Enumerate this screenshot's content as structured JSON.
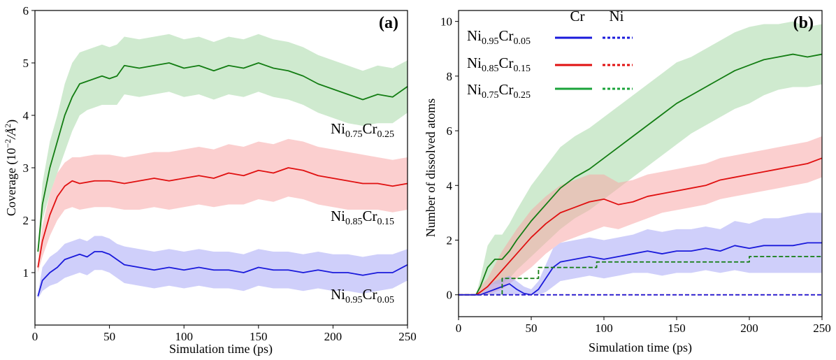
{
  "colors": {
    "blue": "#1a1adb",
    "red": "#e01010",
    "green": "#137d13",
    "blue_band": "#a8a8f5",
    "red_band": "#f7a8a8",
    "green_band": "#a8d8a8"
  },
  "chart_data": [
    {
      "type": "line",
      "panel": "(a)",
      "xlabel": "Simulation time (ps)",
      "ylabel_main": "Coverage (10",
      "ylabel_exp": "−2",
      "ylabel_unit": "/Å",
      "ylabel_unit_exp": "2",
      "ylabel_close": ")",
      "xlim": [
        0,
        250
      ],
      "ylim": [
        0,
        6
      ],
      "xticks": [
        0,
        50,
        100,
        150,
        200,
        250
      ],
      "yticks": [
        1,
        2,
        3,
        4,
        5,
        6
      ],
      "series": [
        {
          "name": "Ni0.75Cr0.25",
          "label_base1": "Ni",
          "label_sub1": "0.75",
          "label_base2": "Cr",
          "label_sub2": "0.25",
          "color": "green",
          "band": "green_band",
          "x": [
            2,
            5,
            10,
            15,
            20,
            25,
            30,
            35,
            40,
            45,
            50,
            55,
            60,
            70,
            80,
            90,
            100,
            110,
            120,
            130,
            140,
            150,
            160,
            170,
            180,
            190,
            200,
            210,
            220,
            230,
            240,
            250
          ],
          "y": [
            1.4,
            2.3,
            3.0,
            3.5,
            4.0,
            4.35,
            4.6,
            4.65,
            4.7,
            4.75,
            4.7,
            4.75,
            4.95,
            4.9,
            4.95,
            5.0,
            4.9,
            4.95,
            4.85,
            4.95,
            4.9,
            5.0,
            4.9,
            4.85,
            4.75,
            4.6,
            4.5,
            4.4,
            4.3,
            4.4,
            4.35,
            4.55
          ],
          "lower": [
            1.3,
            2.0,
            2.5,
            2.9,
            3.3,
            3.7,
            4.0,
            4.1,
            4.15,
            4.2,
            4.2,
            4.2,
            4.4,
            4.35,
            4.4,
            4.45,
            4.35,
            4.4,
            4.3,
            4.4,
            4.35,
            4.45,
            4.35,
            4.3,
            4.2,
            4.05,
            3.95,
            3.85,
            3.8,
            3.85,
            3.85,
            4.05
          ],
          "upper": [
            1.5,
            2.7,
            3.5,
            4.0,
            4.6,
            5.0,
            5.2,
            5.25,
            5.3,
            5.35,
            5.3,
            5.35,
            5.5,
            5.45,
            5.5,
            5.55,
            5.45,
            5.5,
            5.4,
            5.5,
            5.45,
            5.55,
            5.45,
            5.4,
            5.3,
            5.15,
            5.05,
            4.95,
            4.85,
            4.95,
            4.9,
            5.05
          ]
        },
        {
          "name": "Ni0.85Cr0.15",
          "label_base1": "Ni",
          "label_sub1": "0.85",
          "label_base2": "Cr",
          "label_sub2": "0.15",
          "color": "red",
          "band": "red_band",
          "x": [
            2,
            5,
            10,
            15,
            20,
            25,
            30,
            40,
            50,
            60,
            70,
            80,
            90,
            100,
            110,
            120,
            130,
            140,
            150,
            160,
            170,
            180,
            190,
            200,
            210,
            220,
            230,
            240,
            250
          ],
          "y": [
            1.1,
            1.6,
            2.1,
            2.45,
            2.65,
            2.75,
            2.7,
            2.75,
            2.75,
            2.7,
            2.75,
            2.8,
            2.75,
            2.8,
            2.85,
            2.8,
            2.9,
            2.85,
            2.95,
            2.9,
            3.0,
            2.95,
            2.85,
            2.8,
            2.75,
            2.7,
            2.7,
            2.65,
            2.7
          ],
          "lower": [
            1.0,
            1.3,
            1.7,
            2.0,
            2.2,
            2.25,
            2.2,
            2.25,
            2.25,
            2.2,
            2.2,
            2.25,
            2.2,
            2.25,
            2.3,
            2.25,
            2.3,
            2.3,
            2.4,
            2.35,
            2.45,
            2.4,
            2.3,
            2.25,
            2.2,
            2.2,
            2.2,
            2.15,
            2.2
          ],
          "upper": [
            1.2,
            1.9,
            2.5,
            2.9,
            3.1,
            3.2,
            3.2,
            3.25,
            3.25,
            3.2,
            3.25,
            3.3,
            3.3,
            3.35,
            3.4,
            3.35,
            3.45,
            3.4,
            3.5,
            3.45,
            3.55,
            3.5,
            3.4,
            3.35,
            3.3,
            3.25,
            3.2,
            3.15,
            3.2
          ]
        },
        {
          "name": "Ni0.95Cr0.05",
          "label_base1": "Ni",
          "label_sub1": "0.95",
          "label_base2": "Cr",
          "label_sub2": "0.05",
          "color": "blue",
          "band": "blue_band",
          "x": [
            2,
            5,
            10,
            15,
            20,
            25,
            30,
            35,
            40,
            45,
            50,
            55,
            60,
            70,
            80,
            90,
            100,
            110,
            120,
            130,
            140,
            150,
            160,
            170,
            180,
            190,
            200,
            210,
            220,
            230,
            240,
            250
          ],
          "y": [
            0.55,
            0.85,
            1.0,
            1.1,
            1.25,
            1.3,
            1.35,
            1.3,
            1.4,
            1.4,
            1.35,
            1.25,
            1.15,
            1.1,
            1.05,
            1.1,
            1.05,
            1.1,
            1.05,
            1.05,
            1.0,
            1.1,
            1.05,
            1.05,
            1.0,
            1.05,
            1.0,
            1.0,
            0.95,
            1.0,
            1.0,
            1.15
          ],
          "lower": [
            0.5,
            0.65,
            0.75,
            0.8,
            0.9,
            0.95,
            1.0,
            0.95,
            1.05,
            1.05,
            1.0,
            0.9,
            0.8,
            0.75,
            0.7,
            0.75,
            0.7,
            0.75,
            0.7,
            0.7,
            0.65,
            0.75,
            0.7,
            0.7,
            0.65,
            0.7,
            0.65,
            0.65,
            0.6,
            0.65,
            0.7,
            0.85
          ],
          "upper": [
            0.6,
            1.1,
            1.3,
            1.4,
            1.55,
            1.6,
            1.65,
            1.6,
            1.7,
            1.7,
            1.65,
            1.55,
            1.5,
            1.45,
            1.4,
            1.45,
            1.4,
            1.45,
            1.4,
            1.4,
            1.35,
            1.45,
            1.4,
            1.4,
            1.35,
            1.4,
            1.35,
            1.35,
            1.3,
            1.35,
            1.35,
            1.45
          ]
        }
      ]
    },
    {
      "type": "line",
      "panel": "(b)",
      "xlabel": "Simulation time (ps)",
      "ylabel": "Number of dissolved atoms",
      "xlim": [
        0,
        250
      ],
      "ylim": [
        -0.8,
        10.4
      ],
      "xticks": [
        0,
        50,
        100,
        150,
        200,
        250
      ],
      "yticks": [
        0,
        2,
        4,
        6,
        8,
        10
      ],
      "legend": {
        "col_cr": "Cr",
        "col_ni": "Ni",
        "rows": [
          {
            "base1": "Ni",
            "sub1": "0.95",
            "base2": "Cr",
            "sub2": "0.05",
            "color": "blue"
          },
          {
            "base1": "Ni",
            "sub1": "0.85",
            "base2": "Cr",
            "sub2": "0.15",
            "color": "red"
          },
          {
            "base1": "Ni",
            "sub1": "0.75",
            "base2": "Cr",
            "sub2": "0.25",
            "color": "green"
          }
        ]
      },
      "series": [
        {
          "name": "Ni0.75Cr0.25 Cr",
          "color": "green",
          "band": "green_band",
          "style": "solid",
          "x": [
            0,
            12,
            15,
            20,
            25,
            30,
            35,
            40,
            50,
            60,
            70,
            80,
            90,
            100,
            110,
            120,
            130,
            140,
            150,
            160,
            170,
            180,
            190,
            200,
            210,
            220,
            230,
            240,
            250
          ],
          "y": [
            0,
            0,
            0.3,
            1.0,
            1.3,
            1.3,
            1.6,
            2.0,
            2.7,
            3.3,
            3.9,
            4.3,
            4.6,
            5.0,
            5.4,
            5.8,
            6.2,
            6.6,
            7.0,
            7.3,
            7.6,
            7.9,
            8.2,
            8.4,
            8.6,
            8.7,
            8.8,
            8.7,
            8.8
          ],
          "lower": [
            0,
            0,
            0.0,
            0.3,
            0.4,
            0.4,
            0.6,
            0.9,
            1.4,
            1.9,
            2.4,
            2.8,
            3.1,
            3.5,
            3.9,
            4.3,
            4.7,
            5.1,
            5.5,
            5.9,
            6.2,
            6.5,
            6.8,
            7.0,
            7.3,
            7.5,
            7.6,
            7.6,
            7.7
          ],
          "upper": [
            0,
            0,
            0.6,
            1.8,
            2.2,
            2.2,
            2.6,
            3.1,
            4.0,
            4.7,
            5.4,
            5.8,
            6.1,
            6.5,
            6.9,
            7.3,
            7.7,
            8.1,
            8.5,
            8.7,
            9.0,
            9.3,
            9.6,
            9.8,
            9.9,
            9.9,
            10.0,
            9.8,
            9.9
          ]
        },
        {
          "name": "Ni0.85Cr0.15 Cr",
          "color": "red",
          "band": "red_band",
          "style": "solid",
          "x": [
            0,
            12,
            15,
            20,
            25,
            30,
            40,
            50,
            60,
            70,
            80,
            90,
            100,
            110,
            120,
            130,
            140,
            150,
            160,
            170,
            180,
            190,
            200,
            210,
            220,
            230,
            240,
            250
          ],
          "y": [
            0,
            0,
            0.1,
            0.3,
            0.6,
            0.9,
            1.5,
            2.1,
            2.6,
            3.0,
            3.2,
            3.4,
            3.5,
            3.3,
            3.4,
            3.6,
            3.7,
            3.8,
            3.9,
            4.0,
            4.2,
            4.3,
            4.4,
            4.5,
            4.6,
            4.7,
            4.8,
            5.0
          ],
          "lower": [
            0,
            0,
            0,
            0.0,
            0.1,
            0.2,
            0.6,
            1.0,
            1.5,
            1.9,
            2.1,
            2.3,
            2.5,
            2.4,
            2.6,
            2.8,
            3.0,
            3.1,
            3.2,
            3.3,
            3.5,
            3.6,
            3.7,
            3.8,
            3.9,
            4.0,
            4.1,
            4.3
          ],
          "upper": [
            0,
            0,
            0.3,
            0.6,
            1.1,
            1.6,
            2.4,
            3.1,
            3.6,
            4.0,
            4.2,
            4.4,
            4.4,
            4.1,
            4.2,
            4.4,
            4.5,
            4.6,
            4.7,
            4.8,
            5.0,
            5.1,
            5.2,
            5.3,
            5.4,
            5.5,
            5.6,
            5.8
          ]
        },
        {
          "name": "Ni0.95Cr0.05 Cr",
          "color": "blue",
          "band": "blue_band",
          "style": "solid",
          "x": [
            0,
            15,
            20,
            25,
            30,
            35,
            40,
            45,
            50,
            55,
            60,
            65,
            70,
            80,
            90,
            100,
            110,
            120,
            130,
            140,
            150,
            160,
            170,
            180,
            190,
            200,
            210,
            220,
            230,
            240,
            250
          ],
          "y": [
            0,
            0,
            0.1,
            0.2,
            0.3,
            0.4,
            0.2,
            0.05,
            0,
            0.2,
            0.6,
            1.0,
            1.2,
            1.3,
            1.4,
            1.3,
            1.4,
            1.5,
            1.6,
            1.5,
            1.6,
            1.6,
            1.7,
            1.6,
            1.8,
            1.7,
            1.8,
            1.8,
            1.8,
            1.9,
            1.9
          ],
          "lower": [
            0,
            0,
            0,
            0,
            0,
            0,
            0,
            0,
            0,
            0,
            0.1,
            0.3,
            0.5,
            0.6,
            0.7,
            0.6,
            0.7,
            0.8,
            0.8,
            0.7,
            0.8,
            0.8,
            0.9,
            0.8,
            0.9,
            0.8,
            0.8,
            0.8,
            0.8,
            0.8,
            0.8
          ],
          "upper": [
            0,
            0,
            0.3,
            0.5,
            0.6,
            0.7,
            0.5,
            0.3,
            0.2,
            0.5,
            1.1,
            1.7,
            1.9,
            2.0,
            2.1,
            2.0,
            2.1,
            2.2,
            2.4,
            2.3,
            2.4,
            2.4,
            2.5,
            2.4,
            2.7,
            2.6,
            2.8,
            2.8,
            2.9,
            3.0,
            3.0
          ]
        },
        {
          "name": "Ni0.75Cr0.25 Ni",
          "color": "green",
          "style": "dashed",
          "x": [
            0,
            30,
            30,
            55,
            55,
            95,
            95,
            125,
            125,
            200,
            200,
            250
          ],
          "y": [
            0,
            0,
            0.6,
            0.6,
            1.0,
            1.0,
            1.2,
            1.2,
            1.2,
            1.2,
            1.4,
            1.4
          ]
        },
        {
          "name": "Ni0.85Cr0.15 Ni",
          "color": "red",
          "style": "dashed",
          "x": [
            0,
            250
          ],
          "y": [
            0,
            0
          ]
        },
        {
          "name": "Ni0.95Cr0.05 Ni",
          "color": "blue",
          "style": "dashed",
          "x": [
            0,
            250
          ],
          "y": [
            0,
            0
          ]
        }
      ]
    }
  ]
}
